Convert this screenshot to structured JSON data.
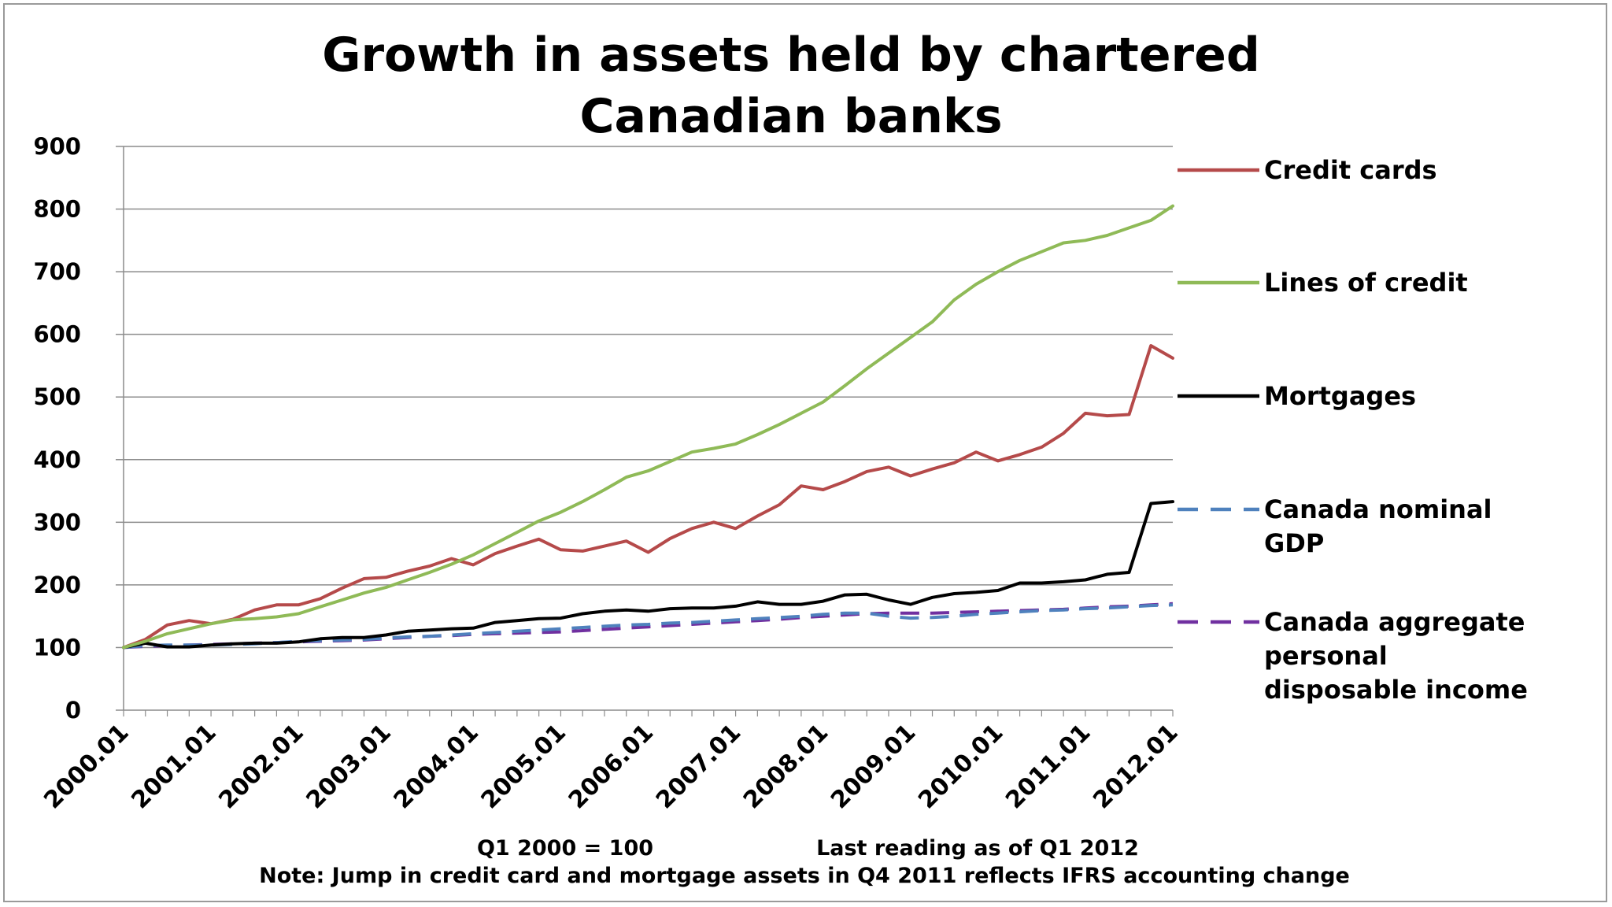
{
  "chart_data": {
    "type": "line",
    "title": [
      "Growth in assets held by chartered",
      "Canadian banks"
    ],
    "xlabel": "",
    "ylabel": "",
    "ylim": [
      0,
      900
    ],
    "yticks": [
      0,
      100,
      200,
      300,
      400,
      500,
      600,
      700,
      800,
      900
    ],
    "xticks": [
      "2000.01",
      "2001.01",
      "2002.01",
      "2003.01",
      "2004.01",
      "2005.01",
      "2006.01",
      "2007.01",
      "2008.01",
      "2009.01",
      "2010.01",
      "2011.01",
      "2012.01"
    ],
    "grid": "horizontal",
    "legend_position": "right",
    "x_start": 2000.0,
    "x_end": 2012.0,
    "x_step": 0.25,
    "series": [
      {
        "name": "Credit cards",
        "color": "#b54a4a",
        "dash": "solid",
        "values": [
          100,
          113,
          136,
          143,
          138,
          145,
          160,
          168,
          168,
          178,
          195,
          210,
          212,
          222,
          230,
          242,
          232,
          250,
          262,
          273,
          256,
          254,
          262,
          270,
          252,
          274,
          290,
          300,
          290,
          310,
          328,
          358,
          352,
          365,
          381,
          388,
          374,
          385,
          395,
          412,
          398,
          408,
          420,
          442,
          474,
          470,
          472,
          582,
          562
        ]
      },
      {
        "name": "Lines of credit",
        "color": "#8fba57",
        "dash": "solid",
        "values": [
          100,
          110,
          122,
          130,
          138,
          144,
          146,
          149,
          154,
          165,
          176,
          187,
          196,
          208,
          220,
          233,
          248,
          266,
          284,
          302,
          316,
          333,
          352,
          372,
          382,
          397,
          412,
          418,
          425,
          440,
          456,
          474,
          492,
          518,
          545,
          570,
          595,
          620,
          655,
          680,
          700,
          718,
          732,
          746,
          750,
          758,
          770,
          782,
          805
        ]
      },
      {
        "name": "Mortgages",
        "color": "#000000",
        "dash": "solid",
        "values": [
          100,
          107,
          101,
          101,
          104,
          106,
          107,
          107,
          109,
          114,
          116,
          116,
          120,
          126,
          128,
          130,
          131,
          140,
          143,
          146,
          147,
          154,
          158,
          160,
          158,
          162,
          163,
          163,
          166,
          173,
          169,
          169,
          174,
          184,
          185,
          176,
          169,
          180,
          186,
          188,
          191,
          203,
          203,
          205,
          208,
          217,
          220,
          330,
          333
        ]
      },
      {
        "name": "Canada nominal GDP",
        "color": "#4f81bd",
        "dash": "long-dash",
        "values": [
          100,
          103,
          104,
          104,
          104,
          105,
          106,
          108,
          110,
          111,
          112,
          113,
          115,
          117,
          118,
          120,
          122,
          124,
          126,
          128,
          130,
          132,
          134,
          136,
          137,
          139,
          140,
          142,
          144,
          146,
          148,
          150,
          153,
          155,
          155,
          150,
          147,
          148,
          150,
          153,
          155,
          157,
          159,
          160,
          162,
          163,
          165,
          167,
          168
        ]
      },
      {
        "name": "Canada aggregate personal disposable income",
        "color": "#7030a0",
        "dash": "long-dash",
        "values": [
          100,
          102,
          103,
          104,
          105,
          106,
          107,
          108,
          109,
          110,
          111,
          112,
          114,
          116,
          118,
          119,
          121,
          122,
          123,
          124,
          125,
          127,
          129,
          131,
          133,
          135,
          137,
          139,
          141,
          143,
          145,
          148,
          150,
          152,
          154,
          155,
          155,
          155,
          156,
          157,
          158,
          159,
          160,
          161,
          163,
          165,
          166,
          168,
          170
        ]
      }
    ],
    "legend_labels": [
      [
        "Credit cards"
      ],
      [
        "Lines of credit"
      ],
      [
        "Mortgages"
      ],
      [
        "Canada nominal",
        "GDP"
      ],
      [
        "Canada aggregate",
        "personal",
        "disposable income"
      ]
    ],
    "notes": {
      "base": "Q1 2000  = 100",
      "last_reading": "Last reading as of Q1 2012",
      "footnote": "Note: Jump in credit card and mortgage assets in Q4 2011  reflects IFRS accounting change"
    }
  }
}
